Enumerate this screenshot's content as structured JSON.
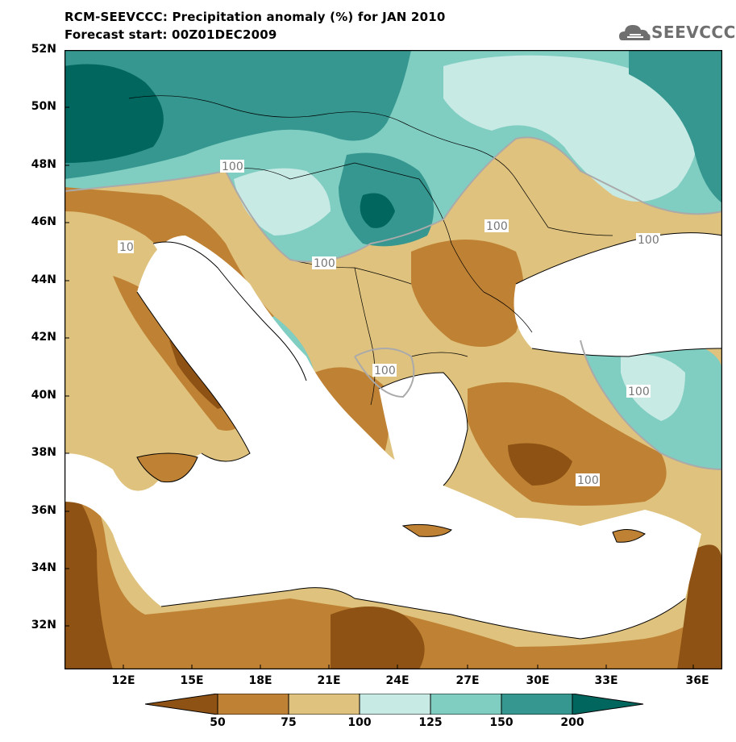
{
  "title": {
    "line1": "RCM-SEEVCCC: Precipitation anomaly (%) for JAN 2010",
    "line2": "Forecast start: 00Z01DEC2009"
  },
  "logo": {
    "text": "SEEVCCC",
    "icon": "cloud-icon"
  },
  "axes": {
    "lat_labels": [
      "52N",
      "50N",
      "48N",
      "46N",
      "44N",
      "42N",
      "40N",
      "38N",
      "36N",
      "34N",
      "32N"
    ],
    "lon_labels": [
      "12E",
      "15E",
      "18E",
      "21E",
      "24E",
      "27E",
      "30E",
      "33E",
      "36E"
    ]
  },
  "contour_labels": [
    "100",
    "100",
    "100",
    "100",
    "100",
    "100",
    "100",
    "10"
  ],
  "colorbar": {
    "tick_labels": [
      "50",
      "75",
      "100",
      "125",
      "150",
      "200"
    ],
    "colors": [
      "#8e5314",
      "#bf8133",
      "#dfc27d",
      "#c7eae5",
      "#80cdc1",
      "#35978f",
      "#01665e"
    ]
  },
  "palette": {
    "land_dry_dark": "#8e5314",
    "land_dry": "#bf8133",
    "land_dry_light": "#dfc27d",
    "wet_light": "#c7eae5",
    "wet": "#80cdc1",
    "wet_mid": "#35978f",
    "wet_dark": "#01665e",
    "sea": "#ffffff"
  }
}
